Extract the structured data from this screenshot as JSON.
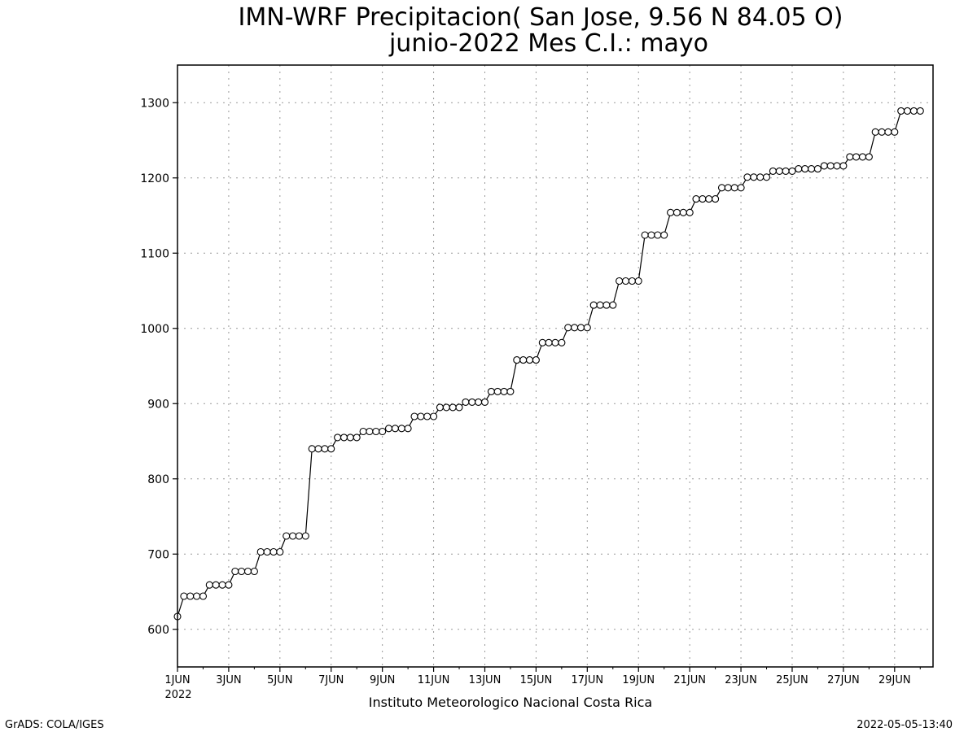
{
  "chart_data": {
    "type": "line",
    "title_line1": "IMN-WRF  Precipitacion( San Jose, 9.56  N 84.05  O)",
    "title_line2": "junio-2022 Mes C.I.: mayo",
    "xlabel": "Instituto Meteorologico Nacional Costa Rica",
    "ylabel": "",
    "x_start_label": "1JUN",
    "x_year_label": "2022",
    "x_tick_labels": [
      "1JUN",
      "3JUN",
      "5JUN",
      "7JUN",
      "9JUN",
      "11JUN",
      "13JUN",
      "15JUN",
      "17JUN",
      "19JUN",
      "21JUN",
      "23JUN",
      "25JUN",
      "27JUN",
      "29JUN"
    ],
    "x_tick_days": [
      1,
      3,
      5,
      7,
      9,
      11,
      13,
      15,
      17,
      19,
      21,
      23,
      25,
      27,
      29
    ],
    "xlim_days": [
      1,
      30.5
    ],
    "ylim": [
      550,
      1350
    ],
    "y_ticks": [
      600,
      700,
      800,
      900,
      1000,
      1100,
      1200,
      1300
    ],
    "grid": true,
    "marker": "open-circle",
    "series": [
      {
        "x_days_first": 1,
        "x_step_days": 0.25,
        "values": [
          617,
          644,
          644,
          644,
          644,
          659,
          659,
          659,
          659,
          677,
          677,
          677,
          677,
          703,
          703,
          703,
          703,
          724,
          724,
          724,
          724,
          840,
          840,
          840,
          840,
          855,
          855,
          855,
          855,
          863,
          863,
          863,
          863,
          867,
          867,
          867,
          867,
          883,
          883,
          883,
          883,
          895,
          895,
          895,
          895,
          902,
          902,
          902,
          902,
          916,
          916,
          916,
          916,
          958,
          958,
          958,
          958,
          981,
          981,
          981,
          981,
          1001,
          1001,
          1001,
          1001,
          1031,
          1031,
          1031,
          1031,
          1063,
          1063,
          1063,
          1063,
          1124,
          1124,
          1124,
          1124,
          1154,
          1154,
          1154,
          1154,
          1172,
          1172,
          1172,
          1172,
          1187,
          1187,
          1187,
          1187,
          1201,
          1201,
          1201,
          1201,
          1209,
          1209,
          1209,
          1209,
          1212,
          1212,
          1212,
          1212,
          1216,
          1216,
          1216,
          1216,
          1228,
          1228,
          1228,
          1228,
          1261,
          1261,
          1261,
          1261,
          1289,
          1289,
          1289,
          1289
        ]
      }
    ]
  },
  "footer": {
    "left": "GrADS: COLA/IGES",
    "right": "2022-05-05-13:40"
  }
}
